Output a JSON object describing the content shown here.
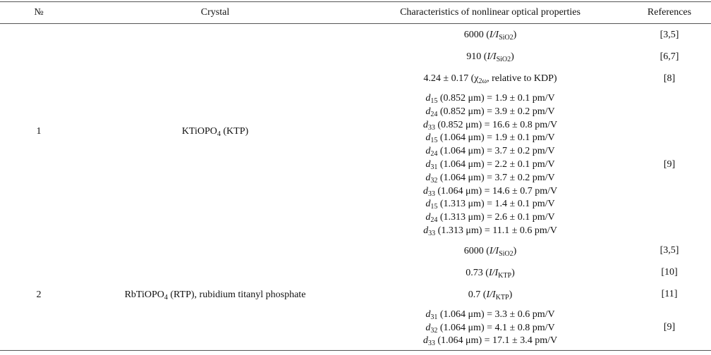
{
  "table": {
    "header": [
      "№",
      "Crystal",
      "Characteristics of nonlinear optical properties",
      "References"
    ],
    "rows": [
      {
        "no": "1",
        "crystal": [
          "KTiOPO",
          {
            "text": "4",
            "style": "sub"
          },
          " (KTP)"
        ],
        "entries": [
          {
            "lines": [
              [
                "6000 (",
                {
                  "text": "I/I",
                  "style": "italic"
                },
                {
                  "text": "SiO2",
                  "style": "sub"
                },
                ")"
              ]
            ],
            "ref": "[3,5]"
          },
          {
            "lines": [
              [
                "910 (",
                {
                  "text": "I/I",
                  "style": "italic"
                },
                {
                  "text": "SiO2",
                  "style": "sub"
                },
                ")"
              ]
            ],
            "ref": "[6,7]"
          },
          {
            "lines": [
              [
                "4.24 ± 0.17 (χ",
                {
                  "text": "2ω",
                  "style": "sub"
                },
                ", relative to KDP)"
              ]
            ],
            "ref": "[8]"
          },
          {
            "lines": [
              [
                {
                  "text": "d",
                  "style": "italic"
                },
                {
                  "text": "15",
                  "style": "sub"
                },
                " (0.852 μm) = 1.9 ± 0.1 pm/V"
              ],
              [
                {
                  "text": "d",
                  "style": "italic"
                },
                {
                  "text": "24",
                  "style": "sub"
                },
                " (0.852 μm) = 3.9 ± 0.2 pm/V"
              ],
              [
                {
                  "text": "d",
                  "style": "italic"
                },
                {
                  "text": "33",
                  "style": "sub"
                },
                " (0.852 μm) = 16.6 ± 0.8 pm/V"
              ],
              [
                {
                  "text": "d",
                  "style": "italic"
                },
                {
                  "text": "15",
                  "style": "sub"
                },
                " (1.064 μm) = 1.9 ± 0.1 pm/V"
              ],
              [
                {
                  "text": "d",
                  "style": "italic"
                },
                {
                  "text": "24",
                  "style": "sub"
                },
                " (1.064 μm) = 3.7 ± 0.2 pm/V"
              ],
              [
                {
                  "text": "d",
                  "style": "italic"
                },
                {
                  "text": "31",
                  "style": "sub"
                },
                " (1.064 μm) = 2.2 ± 0.1 pm/V"
              ],
              [
                {
                  "text": "d",
                  "style": "italic"
                },
                {
                  "text": "32",
                  "style": "sub"
                },
                " (1.064 μm) = 3.7 ± 0.2 pm/V"
              ],
              [
                {
                  "text": "d",
                  "style": "italic"
                },
                {
                  "text": "33",
                  "style": "sub"
                },
                " (1.064 μm) = 14.6 ± 0.7 pm/V"
              ],
              [
                {
                  "text": "d",
                  "style": "italic"
                },
                {
                  "text": "15",
                  "style": "sub"
                },
                " (1.313 μm) = 1.4 ± 0.1 pm/V"
              ],
              [
                {
                  "text": "d",
                  "style": "italic"
                },
                {
                  "text": "24",
                  "style": "sub"
                },
                " (1.313 μm) = 2.6 ± 0.1 pm/V"
              ],
              [
                {
                  "text": "d",
                  "style": "italic"
                },
                {
                  "text": "33",
                  "style": "sub"
                },
                " (1.313 μm) = 11.1 ± 0.6 pm/V"
              ]
            ],
            "ref": "[9]"
          }
        ]
      },
      {
        "no": "2",
        "crystal": [
          "RbTiOPO",
          {
            "text": "4",
            "style": "sub"
          },
          " (RTP), rubidium titanyl phosphate"
        ],
        "entries": [
          {
            "lines": [
              [
                "6000 (",
                {
                  "text": "I/I",
                  "style": "italic"
                },
                {
                  "text": "SiO2",
                  "style": "sub"
                },
                ")"
              ]
            ],
            "ref": "[3,5]"
          },
          {
            "lines": [
              [
                "0.73 (",
                {
                  "text": "I/I",
                  "style": "italic"
                },
                {
                  "text": "KTP",
                  "style": "sub"
                },
                ")"
              ]
            ],
            "ref": "[10]"
          },
          {
            "lines": [
              [
                "0.7 (",
                {
                  "text": "I/I",
                  "style": "italic"
                },
                {
                  "text": "KTP",
                  "style": "sub"
                },
                ")"
              ]
            ],
            "ref": "[11]"
          },
          {
            "lines": [
              [
                {
                  "text": "d",
                  "style": "italic"
                },
                {
                  "text": "31",
                  "style": "sub"
                },
                " (1.064 μm) = 3.3 ± 0.6 pm/V"
              ],
              [
                {
                  "text": "d",
                  "style": "italic"
                },
                {
                  "text": "32",
                  "style": "sub"
                },
                " (1.064 μm) = 4.1 ± 0.8 pm/V"
              ],
              [
                {
                  "text": "d",
                  "style": "italic"
                },
                {
                  "text": "33",
                  "style": "sub"
                },
                " (1.064 μm) = 17.1 ± 3.4 pm/V"
              ]
            ],
            "ref": "[9]"
          }
        ]
      }
    ]
  }
}
